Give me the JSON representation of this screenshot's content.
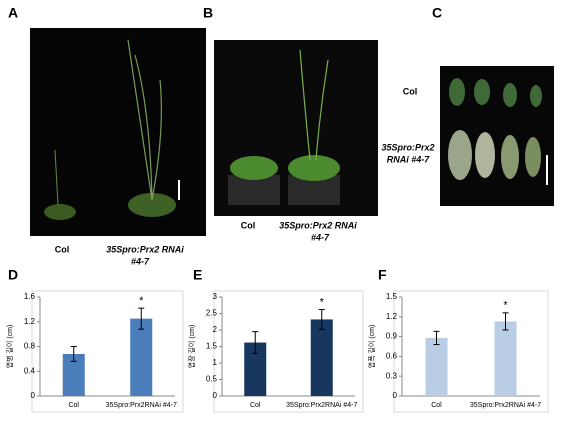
{
  "panels": [
    {
      "label": "A",
      "captions": [
        "Col",
        "35Spro:Prx2  RNAi",
        "#4-7"
      ]
    },
    {
      "label": "B",
      "captions": [
        "Col",
        "35Spro:Prx2  RNAi",
        "#4-7"
      ]
    },
    {
      "label": "C",
      "captions": [
        "Col",
        "35Spro:Prx2",
        "RNAi #4-7"
      ]
    }
  ],
  "chart_data": [
    {
      "type": "bar",
      "label": "D",
      "ylabel": "엽병 길이 (cm)",
      "categories": [
        "Col",
        "35Spro:Prx2RNAi #4-7"
      ],
      "values": [
        0.68,
        1.25
      ],
      "errors": [
        0.12,
        0.17
      ],
      "color": "#4a7ebb",
      "annotations": [
        null,
        "*"
      ],
      "ylim": [
        0,
        1.6
      ],
      "yticks": [
        0,
        0.4,
        0.8,
        1.2,
        1.6
      ]
    },
    {
      "type": "bar",
      "label": "E",
      "ylabel": "엽장 길이 (cm)",
      "categories": [
        "Col",
        "35Spro:Prx2RNAi #4-7"
      ],
      "values": [
        1.62,
        2.32
      ],
      "errors": [
        0.33,
        0.3
      ],
      "color": "#17375e",
      "annotations": [
        null,
        "*"
      ],
      "ylim": [
        0,
        3
      ],
      "yticks": [
        0,
        0.5,
        1,
        1.5,
        2,
        2.5,
        3
      ]
    },
    {
      "type": "bar",
      "label": "F",
      "ylabel": "엽폭 길이 (cm)",
      "categories": [
        "Col",
        "35Spro:Prx2RNAi #4-7"
      ],
      "values": [
        0.88,
        1.13
      ],
      "errors": [
        0.1,
        0.13
      ],
      "color": "#b9cde5",
      "annotations": [
        null,
        "*"
      ],
      "ylim": [
        0,
        1.5
      ],
      "yticks": [
        0,
        0.3,
        0.6,
        0.9,
        1.2,
        1.5
      ]
    }
  ]
}
